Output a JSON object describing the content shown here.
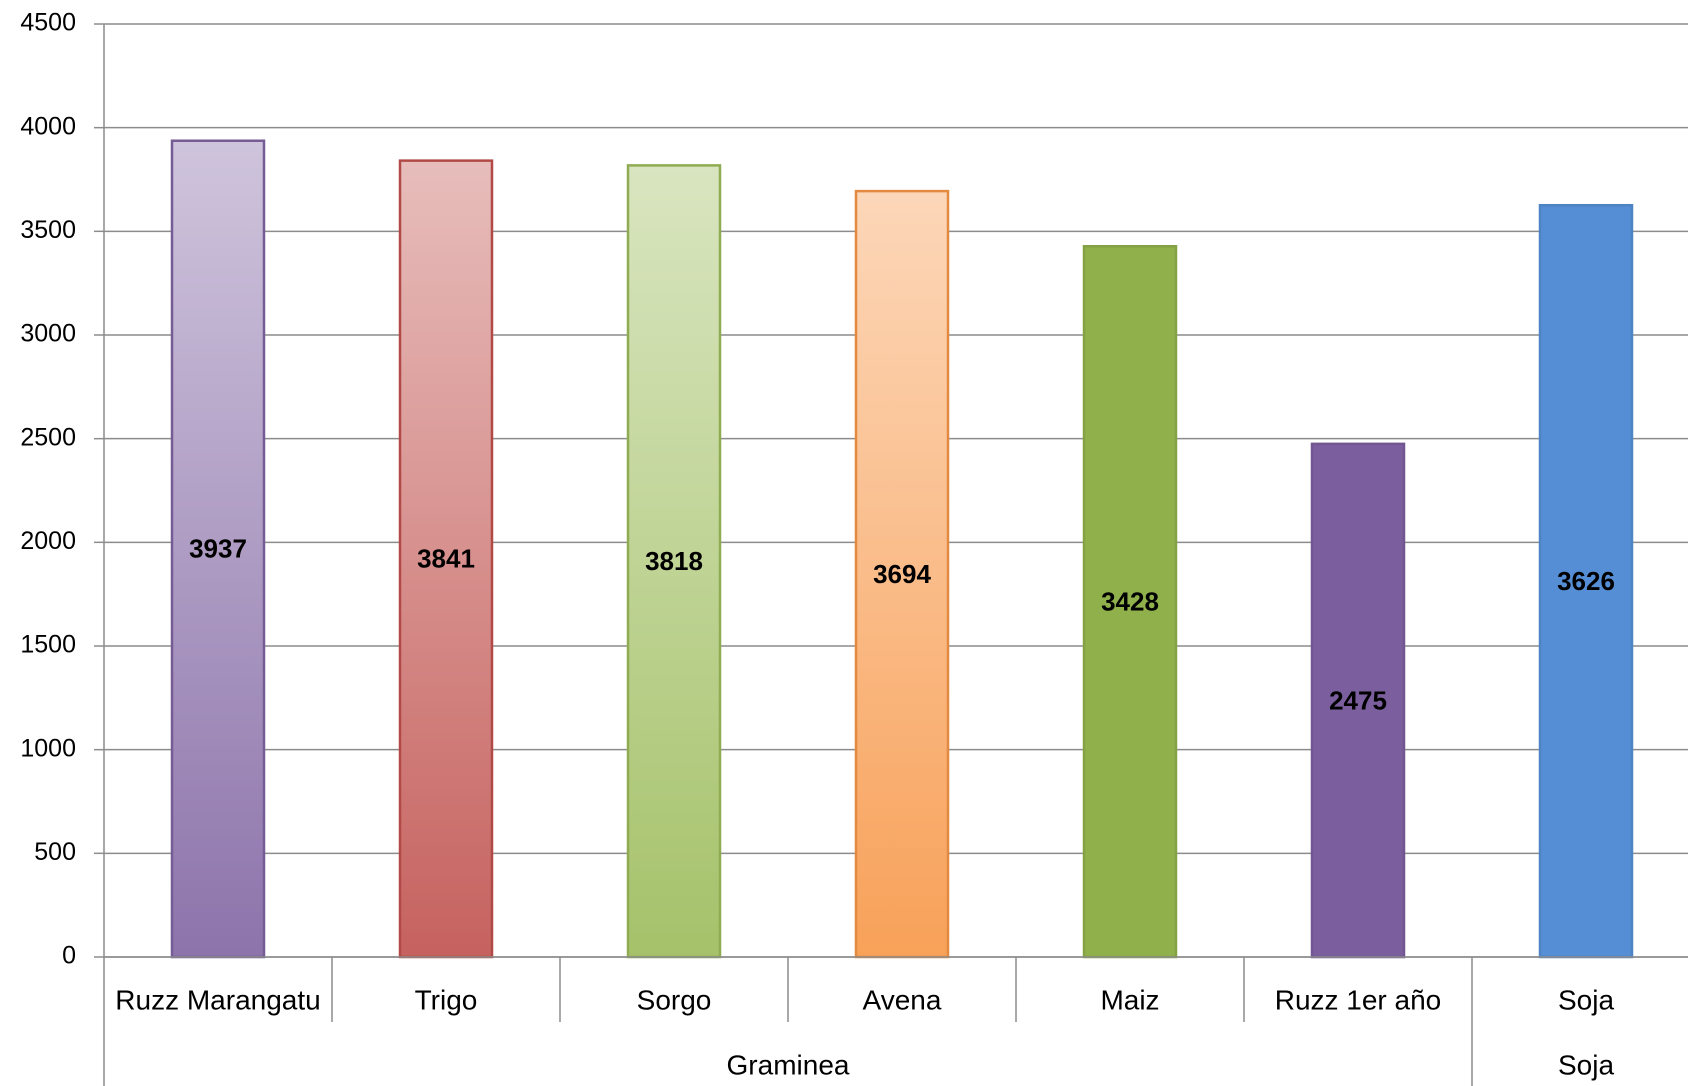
{
  "chart_data": {
    "type": "bar",
    "groups": [
      {
        "name": "Graminea",
        "categories": [
          "Ruzz Marangatu",
          "Trigo",
          "Sorgo",
          "Avena",
          "Maiz",
          "Ruzz 1er año"
        ],
        "values": [
          3937,
          3841,
          3818,
          3694,
          3428,
          2475
        ],
        "colors": [
          "#8064a2",
          "#c0504d",
          "#9bbb59",
          "#f79646",
          "#8fb04a",
          "#7b5e9e"
        ],
        "gradient": [
          true,
          true,
          true,
          true,
          false,
          false
        ]
      },
      {
        "name": "Soja",
        "categories": [
          "Soja"
        ],
        "values": [
          3626
        ],
        "colors": [
          "#558ed5"
        ],
        "gradient": [
          false
        ]
      }
    ],
    "ylim": [
      0,
      4500
    ],
    "yticks": [
      0,
      500,
      1000,
      1500,
      2000,
      2500,
      3000,
      3500,
      4000,
      4500
    ],
    "grid": true
  }
}
